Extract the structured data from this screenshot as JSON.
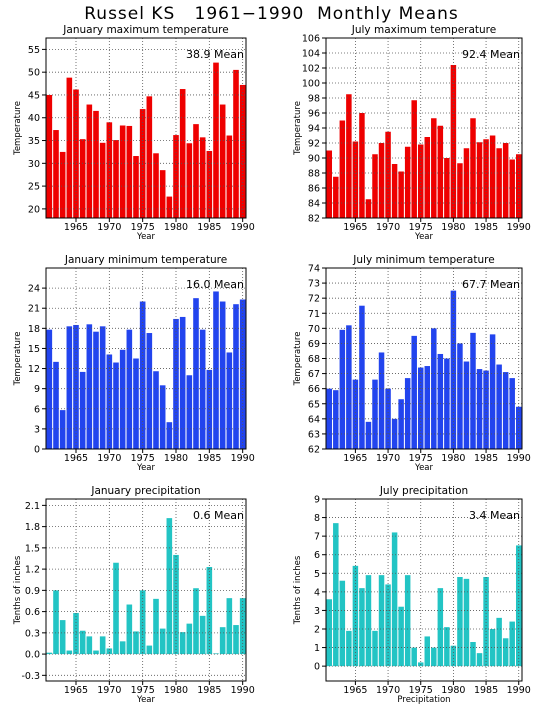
{
  "title": "Russel KS   1961−1990  Monthly Means",
  "chart_data": [
    {
      "type": "bar",
      "title": "January maximum temperature",
      "xlabel": "Year",
      "ylabel": "Temperature",
      "mean_label": "38.9  Mean",
      "color": "#ee0000",
      "x": [
        1961,
        1962,
        1963,
        1964,
        1965,
        1966,
        1967,
        1968,
        1969,
        1970,
        1971,
        1972,
        1973,
        1974,
        1975,
        1976,
        1977,
        1978,
        1979,
        1980,
        1981,
        1982,
        1983,
        1984,
        1985,
        1986,
        1987,
        1988,
        1989,
        1990
      ],
      "values": [
        45.0,
        37.3,
        32.5,
        48.8,
        46.2,
        35.3,
        42.9,
        41.5,
        34.5,
        39.0,
        35.1,
        38.3,
        38.2,
        31.6,
        41.9,
        44.7,
        32.2,
        28.5,
        22.7,
        36.2,
        46.3,
        34.4,
        38.6,
        35.7,
        32.7,
        52.1,
        42.9,
        36.1,
        50.5,
        47.2
      ],
      "ylim": [
        18,
        57.5
      ],
      "yticks": [
        20,
        25,
        30,
        35,
        40,
        45,
        50,
        55
      ],
      "xticks": [
        1965,
        1970,
        1975,
        1980,
        1985,
        1990
      ],
      "grid": true
    },
    {
      "type": "bar",
      "title": "July maximum temperature",
      "xlabel": "Year",
      "ylabel": "Temperature",
      "mean_label": "92.4  Mean",
      "color": "#ee0000",
      "x": [
        1961,
        1962,
        1963,
        1964,
        1965,
        1966,
        1967,
        1968,
        1969,
        1970,
        1971,
        1972,
        1973,
        1974,
        1975,
        1976,
        1977,
        1978,
        1979,
        1980,
        1981,
        1982,
        1983,
        1984,
        1985,
        1986,
        1987,
        1988,
        1989,
        1990
      ],
      "values": [
        91.0,
        87.5,
        95.0,
        98.5,
        92.2,
        96.0,
        84.5,
        90.5,
        92.0,
        93.5,
        89.2,
        88.2,
        91.5,
        97.7,
        91.8,
        92.8,
        95.3,
        94.3,
        90.0,
        102.4,
        89.3,
        91.3,
        95.3,
        92.1,
        92.5,
        93.0,
        91.3,
        92.0,
        89.8,
        90.5
      ],
      "ylim": [
        82,
        106
      ],
      "yticks": [
        82,
        84,
        86,
        88,
        90,
        92,
        94,
        96,
        98,
        100,
        102,
        104,
        106
      ],
      "xticks": [
        1965,
        1970,
        1975,
        1980,
        1985,
        1990
      ],
      "grid": true
    },
    {
      "type": "bar",
      "title": "January minimum temperature",
      "xlabel": "Year",
      "ylabel": "Temperature",
      "mean_label": "16.0  Mean",
      "color": "#2244ee",
      "x": [
        1961,
        1962,
        1963,
        1964,
        1965,
        1966,
        1967,
        1968,
        1969,
        1970,
        1971,
        1972,
        1973,
        1974,
        1975,
        1976,
        1977,
        1978,
        1979,
        1980,
        1981,
        1982,
        1983,
        1984,
        1985,
        1986,
        1987,
        1988,
        1989,
        1990
      ],
      "values": [
        17.8,
        13.0,
        5.8,
        18.3,
        18.5,
        11.5,
        18.6,
        17.5,
        18.3,
        14.1,
        12.9,
        14.8,
        17.8,
        13.5,
        22.0,
        17.3,
        11.6,
        9.5,
        4.0,
        19.4,
        19.7,
        11.0,
        22.5,
        17.8,
        11.8,
        23.5,
        22.0,
        14.4,
        21.6,
        22.3
      ],
      "ylim": [
        0,
        27
      ],
      "yticks": [
        0,
        3,
        6,
        9,
        12,
        15,
        18,
        21,
        24
      ],
      "xticks": [
        1965,
        1970,
        1975,
        1980,
        1985,
        1990
      ],
      "grid": true
    },
    {
      "type": "bar",
      "title": "July minimum temperature",
      "xlabel": "Year",
      "ylabel": "Temperature",
      "mean_label": "67.7  Mean",
      "color": "#2244ee",
      "x": [
        1961,
        1962,
        1963,
        1964,
        1965,
        1966,
        1967,
        1968,
        1969,
        1970,
        1971,
        1972,
        1973,
        1974,
        1975,
        1976,
        1977,
        1978,
        1979,
        1980,
        1981,
        1982,
        1983,
        1984,
        1985,
        1986,
        1987,
        1988,
        1989,
        1990
      ],
      "values": [
        66.0,
        65.9,
        69.9,
        70.2,
        66.6,
        71.5,
        63.8,
        66.6,
        68.4,
        66.0,
        64.0,
        65.3,
        66.7,
        69.5,
        67.4,
        67.5,
        70.0,
        68.3,
        68.0,
        72.5,
        69.0,
        67.8,
        69.7,
        67.3,
        67.2,
        69.6,
        67.6,
        67.1,
        66.7,
        64.8
      ],
      "ylim": [
        62,
        74
      ],
      "yticks": [
        62,
        63,
        64,
        65,
        66,
        67,
        68,
        69,
        70,
        71,
        72,
        73,
        74
      ],
      "xticks": [
        1965,
        1970,
        1975,
        1980,
        1985,
        1990
      ],
      "grid": true
    },
    {
      "type": "bar",
      "title": "January precipitation",
      "xlabel": "Year",
      "ylabel": "Tenths of inches",
      "mean_label": "0.6  Mean",
      "color": "#22c4c4",
      "x": [
        1961,
        1962,
        1963,
        1964,
        1965,
        1966,
        1967,
        1968,
        1969,
        1970,
        1971,
        1972,
        1973,
        1974,
        1975,
        1976,
        1977,
        1978,
        1979,
        1980,
        1981,
        1982,
        1983,
        1984,
        1985,
        1986,
        1987,
        1988,
        1989,
        1990
      ],
      "values": [
        0.02,
        0.9,
        0.48,
        0.05,
        0.58,
        0.33,
        0.25,
        0.05,
        0.25,
        0.08,
        1.29,
        0.18,
        0.7,
        0.32,
        0.9,
        0.12,
        0.78,
        0.36,
        1.92,
        1.4,
        0.31,
        0.43,
        0.93,
        0.54,
        1.23,
        0.01,
        0.38,
        0.79,
        0.41,
        0.79
      ],
      "ylim": [
        -0.38,
        2.19
      ],
      "yticks": [
        -0.3,
        0.0,
        0.3,
        0.6,
        0.9,
        1.2,
        1.5,
        1.8,
        2.1
      ],
      "ytick_labels": [
        "-0.3",
        "0.0",
        "0.3",
        "0.6",
        "0.9",
        "1.2",
        "1.5",
        "1.8",
        "2.1"
      ],
      "xticks": [
        1965,
        1970,
        1975,
        1980,
        1985,
        1990
      ],
      "grid": true
    },
    {
      "type": "bar",
      "title": "July precipitation",
      "xlabel": "Precipitation",
      "ylabel": "Tenths of inches",
      "mean_label": "3.4  Mean",
      "color": "#22c4c4",
      "x": [
        1961,
        1962,
        1963,
        1964,
        1965,
        1966,
        1967,
        1968,
        1969,
        1970,
        1971,
        1972,
        1973,
        1974,
        1975,
        1976,
        1977,
        1978,
        1979,
        1980,
        1981,
        1982,
        1983,
        1984,
        1985,
        1986,
        1987,
        1988,
        1989,
        1990
      ],
      "values": [
        3.6,
        7.7,
        4.6,
        1.9,
        5.4,
        4.2,
        4.9,
        1.9,
        4.9,
        4.4,
        7.2,
        3.2,
        4.9,
        1.0,
        0.2,
        1.6,
        1.0,
        4.2,
        2.1,
        1.1,
        4.8,
        4.7,
        1.3,
        0.7,
        4.8,
        2.0,
        2.6,
        1.5,
        2.4,
        6.5
      ],
      "ylim": [
        -0.8,
        9
      ],
      "yticks": [
        0,
        1,
        2,
        3,
        4,
        5,
        6,
        7,
        8,
        9
      ],
      "xticks": [
        1965,
        1970,
        1975,
        1980,
        1985,
        1990
      ],
      "grid": true
    }
  ]
}
